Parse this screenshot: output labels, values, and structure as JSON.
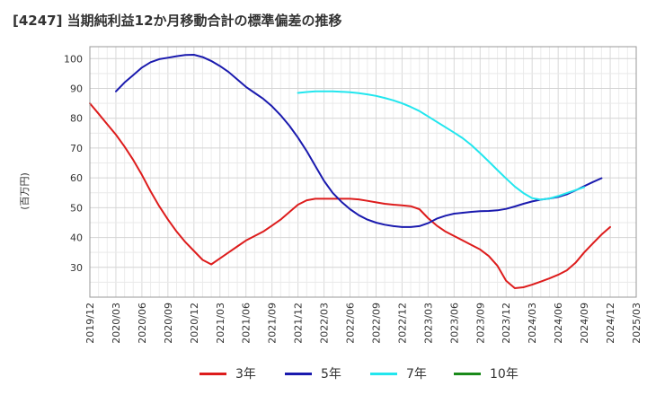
{
  "title": "[4247]  当期純利益12か月移動合計の標準偏差の推移",
  "chart_data": {
    "type": "line",
    "ylabel": "(百万円)",
    "xlabel": "",
    "ylim": [
      20,
      104
    ],
    "yticks": [
      30,
      40,
      50,
      60,
      70,
      80,
      90,
      100
    ],
    "xticks": [
      "2019/12",
      "2020/03",
      "2020/06",
      "2020/09",
      "2020/12",
      "2021/03",
      "2021/06",
      "2021/09",
      "2021/12",
      "2022/03",
      "2022/06",
      "2022/09",
      "2022/12",
      "2023/03",
      "2023/06",
      "2023/09",
      "2023/12",
      "2024/03",
      "2024/06",
      "2024/09",
      "2024/12",
      "2025/03"
    ],
    "grid": true,
    "legend_position": "bottom",
    "series": [
      {
        "name": "3年",
        "color": "#dd1c1c",
        "points": [
          [
            "2019/12",
            85.0
          ],
          [
            "2020/01",
            81.5
          ],
          [
            "2020/02",
            78.0
          ],
          [
            "2020/03",
            74.5
          ],
          [
            "2020/04",
            70.5
          ],
          [
            "2020/05",
            66.0
          ],
          [
            "2020/06",
            61.0
          ],
          [
            "2020/07",
            55.5
          ],
          [
            "2020/08",
            50.5
          ],
          [
            "2020/09",
            46.0
          ],
          [
            "2020/10",
            42.0
          ],
          [
            "2020/11",
            38.5
          ],
          [
            "2020/12",
            35.5
          ],
          [
            "2021/01",
            32.5
          ],
          [
            "2021/02",
            31.0
          ],
          [
            "2021/03",
            33.0
          ],
          [
            "2021/04",
            35.0
          ],
          [
            "2021/05",
            37.0
          ],
          [
            "2021/06",
            39.0
          ],
          [
            "2021/07",
            40.5
          ],
          [
            "2021/08",
            42.0
          ],
          [
            "2021/09",
            44.0
          ],
          [
            "2021/10",
            46.0
          ],
          [
            "2021/11",
            48.5
          ],
          [
            "2021/12",
            51.0
          ],
          [
            "2022/01",
            52.5
          ],
          [
            "2022/02",
            53.0
          ],
          [
            "2022/03",
            53.0
          ],
          [
            "2022/04",
            53.0
          ],
          [
            "2022/05",
            53.0
          ],
          [
            "2022/06",
            53.0
          ],
          [
            "2022/07",
            52.8
          ],
          [
            "2022/08",
            52.3
          ],
          [
            "2022/09",
            51.8
          ],
          [
            "2022/10",
            51.3
          ],
          [
            "2022/11",
            51.0
          ],
          [
            "2022/12",
            50.8
          ],
          [
            "2023/01",
            50.5
          ],
          [
            "2023/02",
            49.5
          ],
          [
            "2023/03",
            46.5
          ],
          [
            "2023/04",
            44.0
          ],
          [
            "2023/05",
            42.0
          ],
          [
            "2023/06",
            40.5
          ],
          [
            "2023/07",
            39.0
          ],
          [
            "2023/08",
            37.5
          ],
          [
            "2023/09",
            36.0
          ],
          [
            "2023/10",
            33.8
          ],
          [
            "2023/11",
            30.5
          ],
          [
            "2023/12",
            25.5
          ],
          [
            "2024/01",
            23.0
          ],
          [
            "2024/02",
            23.3
          ],
          [
            "2024/03",
            24.2
          ],
          [
            "2024/04",
            25.2
          ],
          [
            "2024/05",
            26.3
          ],
          [
            "2024/06",
            27.5
          ],
          [
            "2024/07",
            29.0
          ],
          [
            "2024/08",
            31.5
          ],
          [
            "2024/09",
            35.0
          ],
          [
            "2024/10",
            38.0
          ],
          [
            "2024/11",
            41.0
          ],
          [
            "2024/12",
            43.5
          ]
        ]
      },
      {
        "name": "5年",
        "color": "#1a1aae",
        "points": [
          [
            "2020/03",
            89.0
          ],
          [
            "2020/04",
            92.0
          ],
          [
            "2020/05",
            94.5
          ],
          [
            "2020/06",
            97.0
          ],
          [
            "2020/07",
            98.8
          ],
          [
            "2020/08",
            99.8
          ],
          [
            "2020/09",
            100.3
          ],
          [
            "2020/10",
            100.8
          ],
          [
            "2020/11",
            101.2
          ],
          [
            "2020/12",
            101.3
          ],
          [
            "2021/01",
            100.5
          ],
          [
            "2021/02",
            99.2
          ],
          [
            "2021/03",
            97.5
          ],
          [
            "2021/04",
            95.5
          ],
          [
            "2021/05",
            93.0
          ],
          [
            "2021/06",
            90.5
          ],
          [
            "2021/07",
            88.5
          ],
          [
            "2021/08",
            86.5
          ],
          [
            "2021/09",
            84.0
          ],
          [
            "2021/10",
            81.0
          ],
          [
            "2021/11",
            77.5
          ],
          [
            "2021/12",
            73.5
          ],
          [
            "2022/01",
            69.0
          ],
          [
            "2022/02",
            64.0
          ],
          [
            "2022/03",
            59.0
          ],
          [
            "2022/04",
            55.0
          ],
          [
            "2022/05",
            52.0
          ],
          [
            "2022/06",
            49.5
          ],
          [
            "2022/07",
            47.5
          ],
          [
            "2022/08",
            46.0
          ],
          [
            "2022/09",
            45.0
          ],
          [
            "2022/10",
            44.3
          ],
          [
            "2022/11",
            43.8
          ],
          [
            "2022/12",
            43.5
          ],
          [
            "2023/01",
            43.5
          ],
          [
            "2023/02",
            43.8
          ],
          [
            "2023/03",
            44.8
          ],
          [
            "2023/04",
            46.3
          ],
          [
            "2023/05",
            47.3
          ],
          [
            "2023/06",
            48.0
          ],
          [
            "2023/07",
            48.3
          ],
          [
            "2023/08",
            48.6
          ],
          [
            "2023/09",
            48.8
          ],
          [
            "2023/10",
            48.9
          ],
          [
            "2023/11",
            49.1
          ],
          [
            "2023/12",
            49.6
          ],
          [
            "2024/01",
            50.4
          ],
          [
            "2024/02",
            51.3
          ],
          [
            "2024/03",
            52.1
          ],
          [
            "2024/04",
            52.7
          ],
          [
            "2024/05",
            53.1
          ],
          [
            "2024/06",
            53.6
          ],
          [
            "2024/07",
            54.5
          ],
          [
            "2024/08",
            55.8
          ],
          [
            "2024/09",
            57.2
          ],
          [
            "2024/10",
            58.6
          ],
          [
            "2024/11",
            59.9
          ]
        ]
      },
      {
        "name": "7年",
        "color": "#22e6ee",
        "points": [
          [
            "2021/12",
            88.5
          ],
          [
            "2022/01",
            88.8
          ],
          [
            "2022/02",
            89.0
          ],
          [
            "2022/03",
            89.0
          ],
          [
            "2022/04",
            89.0
          ],
          [
            "2022/05",
            88.9
          ],
          [
            "2022/06",
            88.7
          ],
          [
            "2022/07",
            88.4
          ],
          [
            "2022/08",
            88.0
          ],
          [
            "2022/09",
            87.5
          ],
          [
            "2022/10",
            86.8
          ],
          [
            "2022/11",
            86.0
          ],
          [
            "2022/12",
            85.0
          ],
          [
            "2023/01",
            83.8
          ],
          [
            "2023/02",
            82.4
          ],
          [
            "2023/03",
            80.6
          ],
          [
            "2023/04",
            78.8
          ],
          [
            "2023/05",
            77.0
          ],
          [
            "2023/06",
            75.2
          ],
          [
            "2023/07",
            73.3
          ],
          [
            "2023/08",
            71.0
          ],
          [
            "2023/09",
            68.3
          ],
          [
            "2023/10",
            65.5
          ],
          [
            "2023/11",
            62.6
          ],
          [
            "2023/12",
            59.8
          ],
          [
            "2024/01",
            57.1
          ],
          [
            "2024/02",
            54.9
          ],
          [
            "2024/03",
            53.2
          ],
          [
            "2024/04",
            52.7
          ],
          [
            "2024/05",
            53.1
          ],
          [
            "2024/06",
            53.9
          ],
          [
            "2024/07",
            54.9
          ],
          [
            "2024/08",
            55.9
          ],
          [
            "2024/09",
            56.9
          ]
        ]
      },
      {
        "name": "10年",
        "color": "#1a8a1a",
        "points": []
      }
    ]
  }
}
